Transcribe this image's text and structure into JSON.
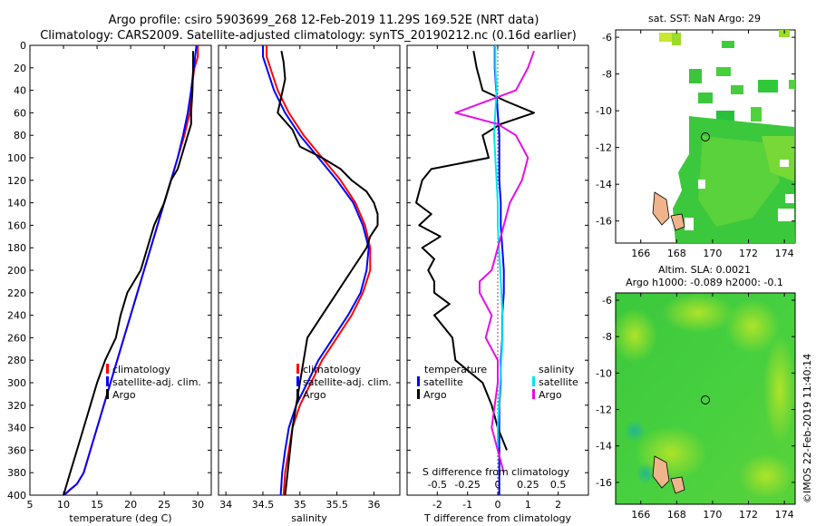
{
  "title": {
    "line1": "Argo profile: csiro 5903699_268 12-Feb-2019 11.29S 169.52E (NRT data)",
    "line2": "Climatology: CARS2009. Satellite-adjusted climatology: synTS_20190212.nc (0.16d earlier)"
  },
  "depth_ticks": [
    0,
    20,
    40,
    60,
    80,
    100,
    120,
    140,
    160,
    180,
    200,
    220,
    240,
    260,
    280,
    300,
    320,
    340,
    360,
    380,
    400
  ],
  "colors": {
    "climatology": "#ff0000",
    "satellite": "#0000ff",
    "argo": "#000000",
    "s_sat": "#00e5ee",
    "s_argo": "#e60ee6"
  },
  "chart_data": [
    {
      "type": "line",
      "name": "temperature",
      "xlabel": "temperature (deg C)",
      "ylabel": "",
      "xlim": [
        5,
        32
      ],
      "ylim": [
        400,
        0
      ],
      "xticks": [
        5,
        10,
        15,
        20,
        25,
        30
      ],
      "legend": [
        "climatology",
        "satellite-adj. clim.",
        "Argo"
      ],
      "series": [
        {
          "name": "climatology",
          "color": "#ff0000",
          "x": [
            30,
            30,
            29.5,
            29,
            28.8,
            28,
            27,
            26,
            25,
            24,
            23,
            22,
            21,
            20,
            19,
            18,
            17,
            16,
            15,
            14,
            13,
            12,
            11,
            10.5,
            10
          ],
          "y": [
            0,
            10,
            20,
            40,
            60,
            80,
            100,
            120,
            140,
            160,
            180,
            200,
            220,
            240,
            260,
            280,
            300,
            320,
            340,
            360,
            380,
            390,
            395,
            398,
            400
          ]
        },
        {
          "name": "satellite-adj. clim.",
          "color": "#0000ff",
          "x": [
            29.8,
            29.6,
            29.4,
            29,
            28.5,
            27.8,
            27,
            26,
            25,
            24,
            23,
            22,
            21,
            20,
            19,
            18,
            17,
            16,
            15,
            14,
            13,
            12,
            11,
            10.4,
            10
          ],
          "y": [
            0,
            10,
            20,
            40,
            60,
            80,
            100,
            120,
            140,
            160,
            180,
            200,
            220,
            240,
            260,
            280,
            300,
            320,
            340,
            360,
            380,
            390,
            395,
            398,
            400
          ]
        },
        {
          "name": "Argo",
          "color": "#000000",
          "x": [
            29.3,
            29.3,
            29.2,
            29,
            29,
            28.5,
            27.5,
            27,
            26,
            25,
            23.5,
            22.5,
            21.5,
            19.5,
            18.5,
            17.8,
            16.2,
            15,
            14,
            13,
            12,
            11,
            10.5,
            10
          ],
          "y": [
            5,
            20,
            40,
            60,
            70,
            80,
            100,
            110,
            120,
            140,
            160,
            180,
            200,
            220,
            240,
            260,
            280,
            300,
            320,
            340,
            360,
            380,
            390,
            400
          ]
        }
      ]
    },
    {
      "type": "line",
      "name": "salinity",
      "xlabel": "salinity",
      "xlim": [
        33.9,
        36.35
      ],
      "ylim": [
        400,
        0
      ],
      "xticks": [
        34,
        34.5,
        35,
        35.5,
        36
      ],
      "xticklabels": [
        "34",
        "34.5",
        "35",
        "35.5",
        "36"
      ],
      "legend": [
        "climatology",
        "satellite-adj. clim.",
        "Argo"
      ],
      "series": [
        {
          "name": "climatology",
          "color": "#ff0000",
          "x": [
            34.55,
            34.55,
            34.6,
            34.7,
            34.85,
            35.05,
            35.3,
            35.55,
            35.75,
            35.88,
            35.95,
            35.95,
            35.85,
            35.7,
            35.5,
            35.3,
            35.15,
            35.0,
            34.9,
            34.85,
            34.8,
            34.78
          ],
          "y": [
            0,
            10,
            20,
            40,
            60,
            80,
            100,
            120,
            140,
            160,
            180,
            200,
            220,
            240,
            260,
            280,
            300,
            320,
            340,
            360,
            380,
            400
          ]
        },
        {
          "name": "satellite-adj. clim.",
          "color": "#0000ff",
          "x": [
            34.5,
            34.5,
            34.55,
            34.65,
            34.8,
            35.0,
            35.25,
            35.5,
            35.72,
            35.85,
            35.93,
            35.9,
            35.82,
            35.65,
            35.45,
            35.25,
            35.1,
            34.95,
            34.85,
            34.8,
            34.76,
            34.74
          ],
          "y": [
            0,
            10,
            20,
            40,
            60,
            80,
            100,
            120,
            140,
            160,
            180,
            200,
            220,
            240,
            260,
            280,
            300,
            320,
            340,
            360,
            380,
            400
          ]
        },
        {
          "name": "Argo",
          "color": "#000000",
          "x": [
            34.75,
            34.78,
            34.8,
            34.75,
            34.7,
            34.9,
            35.0,
            35.3,
            35.55,
            35.7,
            35.9,
            36.0,
            36.05,
            36.05,
            35.95,
            35.9,
            35.7,
            35.5,
            35.3,
            35.1,
            35.0,
            34.9,
            34.85,
            34.8
          ],
          "y": [
            5,
            15,
            30,
            45,
            60,
            75,
            90,
            100,
            110,
            120,
            130,
            140,
            150,
            160,
            170,
            180,
            200,
            220,
            240,
            260,
            300,
            340,
            370,
            400
          ]
        }
      ]
    },
    {
      "type": "line",
      "name": "difference",
      "xlabel": "T difference from climatology",
      "x2label": "S difference from climatology",
      "xlim": [
        -3,
        3
      ],
      "ylim": [
        400,
        0
      ],
      "xticks": [
        -2,
        -1,
        0,
        1,
        2
      ],
      "xticklabels": [
        "-2",
        "-1",
        "0",
        "1",
        "2"
      ],
      "x2ticks": [
        -0.5,
        -0.25,
        0,
        0.25,
        0.5
      ],
      "x2ticklabels": [
        "-0.5",
        "-0.25",
        "0",
        "0.25",
        "0.5"
      ],
      "x2lim": [
        -0.75,
        0.75
      ],
      "legend_temperature": {
        "title": "temperature",
        "items": [
          "satellite",
          "Argo"
        ]
      },
      "legend_salinity": {
        "title": "salinity",
        "items": [
          "satellite",
          "Argo"
        ]
      },
      "series": [
        {
          "name": "T satellite",
          "color": "#0000ff",
          "x": [
            -0.1,
            -0.1,
            -0.05,
            0,
            0.05,
            0.05,
            0.05,
            0.1,
            0.1,
            0.15,
            0.2,
            0.2,
            0.15,
            0.15,
            0.1,
            0.1,
            0.05,
            0.05,
            0.05,
            0.05
          ],
          "y": [
            0,
            20,
            40,
            60,
            80,
            100,
            120,
            140,
            160,
            180,
            200,
            220,
            240,
            260,
            280,
            300,
            320,
            340,
            360,
            400
          ]
        },
        {
          "name": "T Argo",
          "color": "#000000",
          "x": [
            -0.8,
            -0.7,
            -0.5,
            0.3,
            1.2,
            0.1,
            -0.5,
            -0.3,
            -2.2,
            -2.5,
            -2.7,
            -2.2,
            -2.6,
            -1.9,
            -2.5,
            -2.1,
            -2.3,
            -2.1,
            -2.1,
            -1.6,
            -2.1,
            -1.5,
            -1.4,
            -0.5,
            -0.2,
            0,
            0.3
          ],
          "y": [
            5,
            20,
            40,
            50,
            60,
            70,
            80,
            100,
            110,
            120,
            140,
            150,
            160,
            170,
            180,
            190,
            200,
            210,
            220,
            230,
            240,
            260,
            280,
            300,
            320,
            340,
            360
          ]
        },
        {
          "name": "S satellite",
          "color": "#00e5ee",
          "x": [
            -0.02,
            -0.02,
            -0.01,
            -0.02,
            -0.03,
            -0.02,
            -0.01,
            0.0,
            0.0,
            0.01,
            0.02,
            0.03,
            0.04,
            0.04,
            0.03,
            0.02,
            0.01,
            0.0,
            0.0
          ],
          "y": [
            0,
            20,
            40,
            60,
            80,
            100,
            120,
            140,
            160,
            180,
            200,
            220,
            240,
            260,
            280,
            300,
            320,
            340,
            360
          ]
        },
        {
          "name": "S Argo",
          "color": "#e60ee6",
          "x": [
            0.3,
            0.25,
            0.15,
            -0.35,
            0.0,
            0.15,
            0.2,
            0.25,
            0.2,
            0.1,
            0.05,
            0.0,
            -0.05,
            -0.15,
            -0.15,
            -0.05,
            -0.1,
            0.0,
            0.0,
            -0.05,
            0.05
          ],
          "y": [
            5,
            20,
            40,
            60,
            70,
            80,
            90,
            100,
            120,
            140,
            160,
            180,
            200,
            210,
            220,
            240,
            260,
            280,
            300,
            340,
            380
          ]
        }
      ]
    }
  ],
  "maps": [
    {
      "title": "sat. SST: NaN Argo: 29",
      "xticks": [
        166,
        168,
        170,
        172,
        174
      ],
      "yticks": [
        -6,
        -8,
        -10,
        -12,
        -14,
        -16
      ]
    },
    {
      "title_line1": "Altim. SLA: 0.0021",
      "title_line2": "Argo h1000: -0.089 h2000: -0.1",
      "xticks": [
        166,
        168,
        170,
        172,
        174
      ],
      "yticks": [
        -6,
        -8,
        -10,
        -12,
        -14,
        -16
      ]
    }
  ],
  "credit": "©IMOS 22-Feb-2019 11:40:14"
}
